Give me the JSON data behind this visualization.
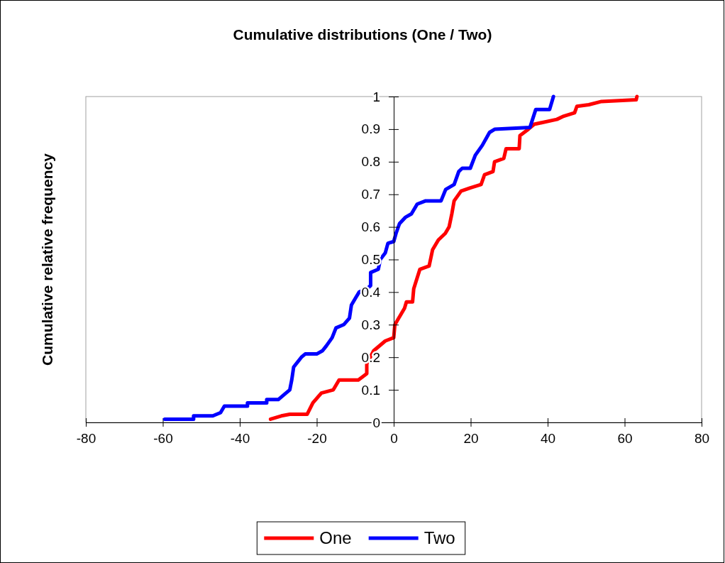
{
  "chart_data": {
    "type": "line",
    "title": "Cumulative distributions (One / Two)",
    "ylabel": "Cumulative relative frequency",
    "xlim": [
      -80,
      80
    ],
    "xticks": [
      -80,
      -60,
      -40,
      -20,
      0,
      20,
      40,
      60,
      80
    ],
    "ylim": [
      0,
      1
    ],
    "yticks": [
      0,
      0.1,
      0.2,
      0.3,
      0.4,
      0.5,
      0.6,
      0.7,
      0.8,
      0.9,
      1
    ],
    "grid": false,
    "legend": "bottom",
    "marker": "none",
    "line_style": "solid",
    "series": [
      {
        "name": "One",
        "color": "#ff0000",
        "x": [
          -32,
          -29.2,
          -27,
          -22.5,
          -21,
          -18.8,
          -15.7,
          -14.2,
          -9.2,
          -7,
          -7,
          -5.2,
          -2.2,
          0,
          0.3,
          1.8,
          2.8,
          3.3,
          4.9,
          5.2,
          6.8,
          9.2,
          10.1,
          11.6,
          13.4,
          14.4,
          15.1,
          15.7,
          17.5,
          19.9,
          22.7,
          23.6,
          25.8,
          26.2,
          28.6,
          29.2,
          32.6,
          32.8,
          35,
          36.5,
          42.4,
          44.2,
          47,
          47.6,
          50.7,
          54,
          63,
          63.2
        ],
        "values": [
          0.01,
          0.02,
          0.025,
          0.025,
          0.06,
          0.09,
          0.1,
          0.13,
          0.13,
          0.15,
          0.18,
          0.22,
          0.25,
          0.26,
          0.3,
          0.33,
          0.35,
          0.37,
          0.37,
          0.41,
          0.47,
          0.48,
          0.53,
          0.56,
          0.58,
          0.6,
          0.64,
          0.68,
          0.71,
          0.72,
          0.73,
          0.76,
          0.77,
          0.8,
          0.81,
          0.84,
          0.84,
          0.88,
          0.9,
          0.915,
          0.93,
          0.94,
          0.95,
          0.97,
          0.975,
          0.985,
          0.99,
          1
        ]
      },
      {
        "name": "Two",
        "color": "#0000ff",
        "x": [
          -59.5,
          -52,
          -52,
          -47,
          -45,
          -44,
          -38,
          -38,
          -33,
          -33,
          -30,
          -28,
          -27,
          -26.5,
          -26,
          -24,
          -23,
          -20,
          -18.5,
          -17.5,
          -16,
          -15,
          -13,
          -11.5,
          -11,
          -10,
          -9,
          -7,
          -6,
          -6,
          -4,
          -3.5,
          -2.2,
          -1.5,
          0,
          0.6,
          1.5,
          3.1,
          4.6,
          6.1,
          8.3,
          12.3,
          13.5,
          15.7,
          16.9,
          17.8,
          19.9,
          21.2,
          23,
          24.9,
          26.3,
          35.4,
          36.9,
          40.5,
          41.5
        ],
        "values": [
          0.01,
          0.01,
          0.02,
          0.02,
          0.03,
          0.05,
          0.05,
          0.06,
          0.06,
          0.07,
          0.07,
          0.09,
          0.1,
          0.13,
          0.17,
          0.2,
          0.21,
          0.21,
          0.22,
          0.235,
          0.26,
          0.29,
          0.3,
          0.32,
          0.36,
          0.38,
          0.4,
          0.41,
          0.42,
          0.46,
          0.47,
          0.5,
          0.52,
          0.55,
          0.555,
          0.58,
          0.61,
          0.63,
          0.64,
          0.67,
          0.68,
          0.68,
          0.715,
          0.73,
          0.77,
          0.78,
          0.78,
          0.82,
          0.85,
          0.89,
          0.9,
          0.905,
          0.96,
          0.96,
          1
        ]
      }
    ]
  }
}
